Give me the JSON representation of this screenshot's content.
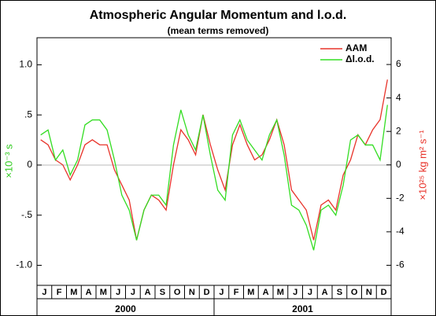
{
  "chart_data": {
    "type": "line",
    "title": "Atmospheric Angular Momentum and l.o.d.",
    "subtitle": "(mean terms removed)",
    "y_label": "×10⁻³ s",
    "y2_label": "×10²⁵ kg m² s⁻¹",
    "x": [
      0.25,
      0.75,
      1.25,
      1.75,
      2.25,
      2.75,
      3.25,
      3.75,
      4.25,
      4.75,
      5.25,
      5.75,
      6.25,
      6.75,
      7.25,
      7.75,
      8.25,
      8.75,
      9.25,
      9.75,
      10.25,
      10.75,
      11.25,
      11.75,
      12.25,
      12.75,
      13.25,
      13.75,
      14.25,
      14.75,
      15.25,
      15.75,
      16.25,
      16.75,
      17.25,
      17.75,
      18.25,
      18.75,
      19.25,
      19.75,
      20.25,
      20.75,
      21.25,
      21.75,
      22.25,
      22.75,
      23.25,
      23.75
    ],
    "xlim": [
      0,
      24
    ],
    "xticks": [
      {
        "value": 0.5,
        "label": "J"
      },
      {
        "value": 1.5,
        "label": "F"
      },
      {
        "value": 2.5,
        "label": "M"
      },
      {
        "value": 3.5,
        "label": "A"
      },
      {
        "value": 4.5,
        "label": "M"
      },
      {
        "value": 5.5,
        "label": "J"
      },
      {
        "value": 6.5,
        "label": "J"
      },
      {
        "value": 7.5,
        "label": "A"
      },
      {
        "value": 8.5,
        "label": "S"
      },
      {
        "value": 9.5,
        "label": "O"
      },
      {
        "value": 10.5,
        "label": "N"
      },
      {
        "value": 11.5,
        "label": "D"
      },
      {
        "value": 12.5,
        "label": "J"
      },
      {
        "value": 13.5,
        "label": "F"
      },
      {
        "value": 14.5,
        "label": "M"
      },
      {
        "value": 15.5,
        "label": "A"
      },
      {
        "value": 16.5,
        "label": "M"
      },
      {
        "value": 17.5,
        "label": "J"
      },
      {
        "value": 18.5,
        "label": "J"
      },
      {
        "value": 19.5,
        "label": "A"
      },
      {
        "value": 20.5,
        "label": "S"
      },
      {
        "value": 21.5,
        "label": "O"
      },
      {
        "value": 22.5,
        "label": "N"
      },
      {
        "value": 23.5,
        "label": "D"
      }
    ],
    "x_group_labels": [
      "2000",
      "2001"
    ],
    "ylim": [
      -1.2,
      1.27
    ],
    "yticks": [
      {
        "value": -1,
        "label": "-1.0"
      },
      {
        "value": -0.5,
        "label": "-.5"
      },
      0,
      {
        "value": 0.5,
        "label": ".5"
      },
      {
        "value": 1,
        "label": "1.0"
      }
    ],
    "y2lim": [
      -7.2,
      7.6
    ],
    "y2ticks": [
      -6,
      -4,
      -2,
      0,
      2,
      4,
      6
    ],
    "reference_line": 0,
    "legend": "upper right",
    "series": [
      {
        "name": "AAM",
        "color": "#e8332a",
        "axis": "y2",
        "values": [
          1.5,
          1.2,
          0.3,
          0,
          -0.9,
          0,
          1.2,
          1.5,
          1.2,
          1.2,
          -0.3,
          -1.2,
          -2.1,
          -4.5,
          -2.7,
          -1.8,
          -2.1,
          -2.7,
          0,
          2.1,
          1.5,
          0.6,
          3,
          1.2,
          -0.3,
          -1.5,
          1.2,
          2.4,
          1.2,
          0.3,
          0.6,
          1.5,
          2.7,
          1.2,
          -1.5,
          -2.1,
          -2.7,
          -4.5,
          -2.4,
          -2.1,
          -2.7,
          -0.6,
          0.3,
          1.8,
          1.2,
          2.1,
          2.7,
          5.1
        ]
      },
      {
        "name": "Δl.o.d.",
        "color": "#33dd22",
        "values": [
          0.3,
          0.35,
          0.05,
          0.15,
          -0.1,
          0.05,
          0.4,
          0.45,
          0.45,
          0.35,
          0.05,
          -0.3,
          -0.45,
          -0.75,
          -0.45,
          -0.3,
          -0.3,
          -0.4,
          0.2,
          0.55,
          0.3,
          0.15,
          0.5,
          0.1,
          -0.25,
          -0.35,
          0.3,
          0.45,
          0.25,
          0.15,
          0.05,
          0.3,
          0.45,
          0.1,
          -0.4,
          -0.45,
          -0.6,
          -0.85,
          -0.45,
          -0.4,
          -0.5,
          -0.2,
          0.25,
          0.3,
          0.2,
          0.2,
          0.05,
          0.6
        ]
      }
    ]
  }
}
